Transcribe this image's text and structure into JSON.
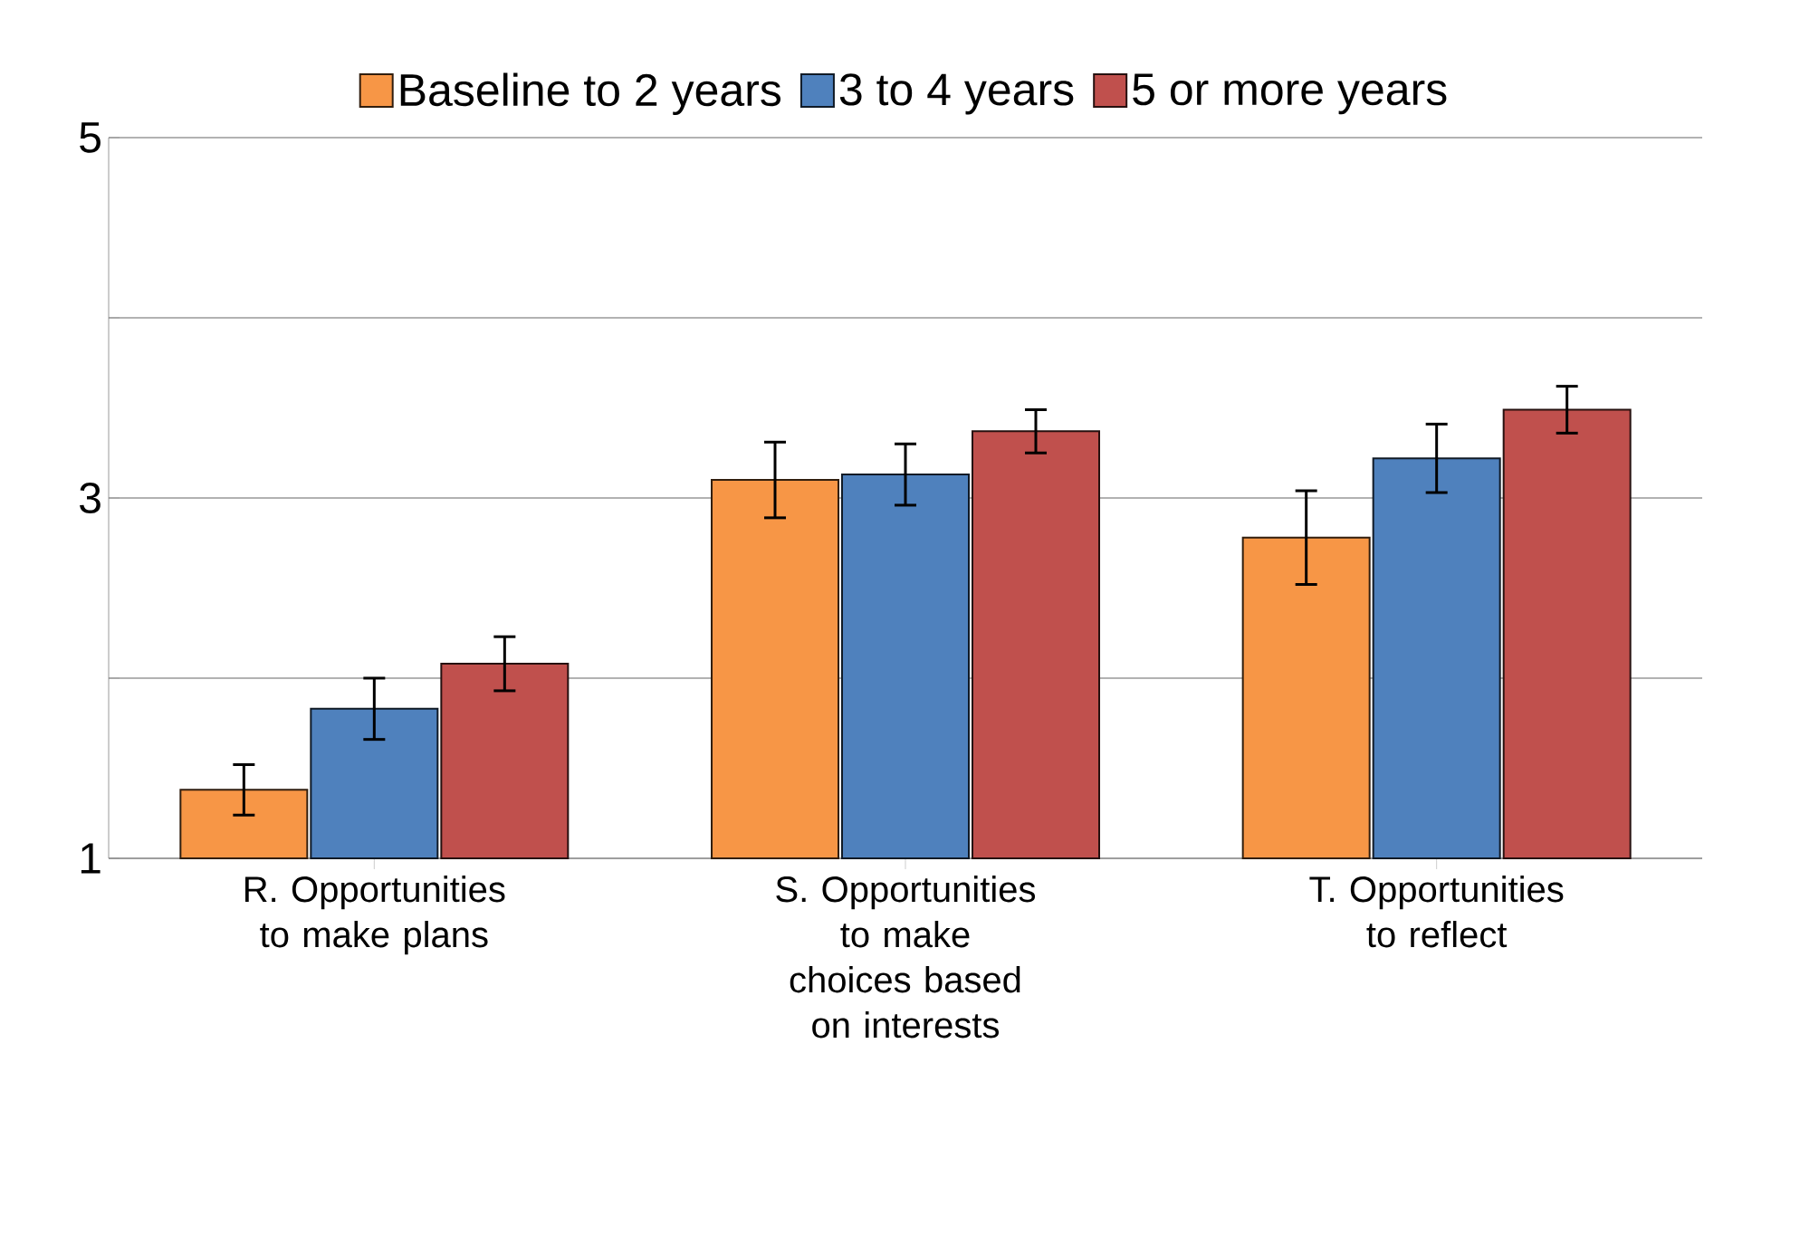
{
  "chart_data": {
    "type": "bar",
    "categories": [
      "R. Opportunities to make plans",
      "S. Opportunities to make choices based on interests",
      "T. Opportunities to reflect"
    ],
    "series": [
      {
        "name": "Baseline to 2 years",
        "color": "#f79646",
        "values": [
          1.38,
          3.1,
          2.78
        ],
        "errors": [
          0.14,
          0.21,
          0.26
        ]
      },
      {
        "name": "3 to 4 years",
        "color": "#4f81bd",
        "values": [
          1.83,
          3.13,
          3.22
        ],
        "errors": [
          0.17,
          0.17,
          0.19
        ]
      },
      {
        "name": "5 or more years",
        "color": "#c0504d",
        "values": [
          2.08,
          3.37,
          3.49
        ],
        "errors": [
          0.15,
          0.12,
          0.13
        ]
      }
    ],
    "ylim": [
      1,
      5
    ],
    "yticks": [
      1,
      {
        "value": 2,
        "label": null
      },
      3,
      {
        "value": 4,
        "label": null
      },
      5
    ],
    "grid": "y",
    "legend": "top"
  }
}
